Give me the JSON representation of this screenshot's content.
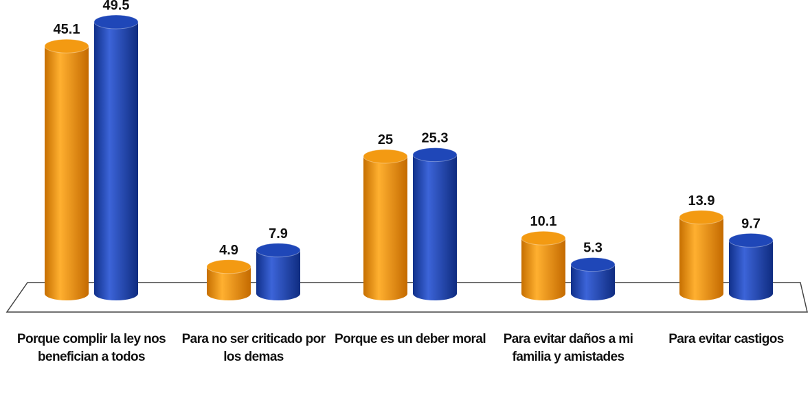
{
  "chart_data": {
    "type": "bar",
    "categories": [
      "Porque complir la ley nos benefician a todos",
      "Para no ser criticado por los demas",
      "Porque es un deber moral",
      "Para evitar daños a mi familia y amistades",
      "Para evitar castigos"
    ],
    "series": [
      {
        "color": "#f39a12",
        "values": [
          45.1,
          4.9,
          25,
          10.1,
          13.9
        ]
      },
      {
        "color": "#1f47b8",
        "values": [
          49.5,
          7.9,
          25.3,
          5.3,
          9.7
        ]
      }
    ]
  }
}
